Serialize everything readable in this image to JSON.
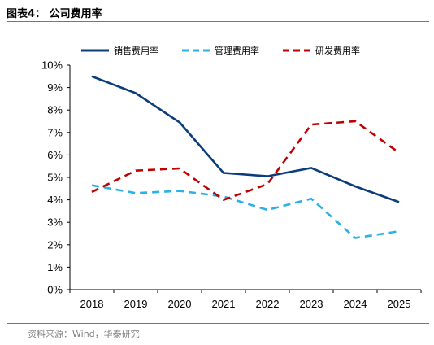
{
  "header": {
    "title": "图表4：  公司费用率"
  },
  "footer": {
    "source": "资料来源：Wind，华泰研究"
  },
  "chart_data": {
    "type": "line",
    "title": "",
    "xlabel": "",
    "ylabel": "",
    "categories": [
      "2018",
      "2019",
      "2020",
      "2021",
      "2022",
      "2023",
      "2024",
      "2025"
    ],
    "ylim": [
      0,
      10
    ],
    "yticks": [
      "0%",
      "1%",
      "2%",
      "3%",
      "4%",
      "5%",
      "6%",
      "7%",
      "8%",
      "9%",
      "10%"
    ],
    "grid": false,
    "legend_position": "top",
    "series": [
      {
        "name": "销售费用率",
        "values": [
          9.5,
          8.75,
          7.45,
          5.2,
          5.05,
          5.42,
          4.6,
          3.9
        ],
        "color": "#0b3d7a",
        "dash": "solid"
      },
      {
        "name": "管理费用率",
        "values": [
          4.65,
          4.3,
          4.4,
          4.15,
          3.55,
          4.05,
          2.3,
          2.6
        ],
        "color": "#2bb0e8",
        "dash": "dashed"
      },
      {
        "name": "研发费用率",
        "values": [
          4.35,
          5.3,
          5.4,
          4.0,
          4.7,
          7.35,
          7.5,
          6.1
        ],
        "color": "#c00000",
        "dash": "dashed"
      }
    ]
  }
}
